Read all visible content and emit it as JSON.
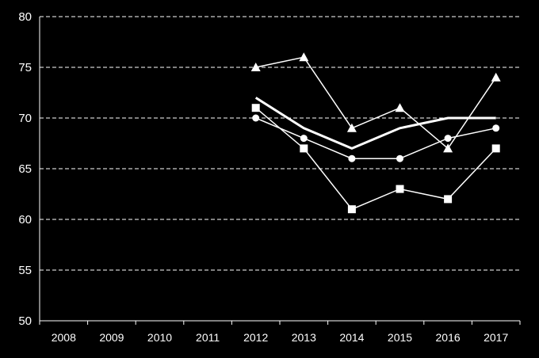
{
  "chart_data": {
    "type": "line",
    "title": "",
    "xlabel": "",
    "ylabel": "",
    "x": [
      "2008",
      "2009",
      "2010",
      "2011",
      "2012",
      "2013",
      "2014",
      "2015",
      "2016",
      "2017"
    ],
    "ylim": [
      50,
      80
    ],
    "yticks": [
      50,
      55,
      60,
      65,
      70,
      75,
      80
    ],
    "grid": "horizontal dashed",
    "legend": "none",
    "colors": {
      "background": "#000000",
      "line": "#ffffff",
      "grid": "#ffffff"
    },
    "series": [
      {
        "marker": "triangle",
        "values": [
          null,
          null,
          null,
          null,
          75,
          76,
          69,
          71,
          67,
          74
        ]
      },
      {
        "marker": "none",
        "thick": true,
        "values": [
          null,
          null,
          null,
          null,
          72,
          69,
          67,
          69,
          70,
          70
        ]
      },
      {
        "marker": "circle",
        "values": [
          null,
          null,
          null,
          null,
          70,
          68,
          66,
          66,
          68,
          69
        ]
      },
      {
        "marker": "square",
        "values": [
          null,
          null,
          null,
          null,
          71,
          67,
          61,
          63,
          62,
          67
        ]
      }
    ]
  }
}
